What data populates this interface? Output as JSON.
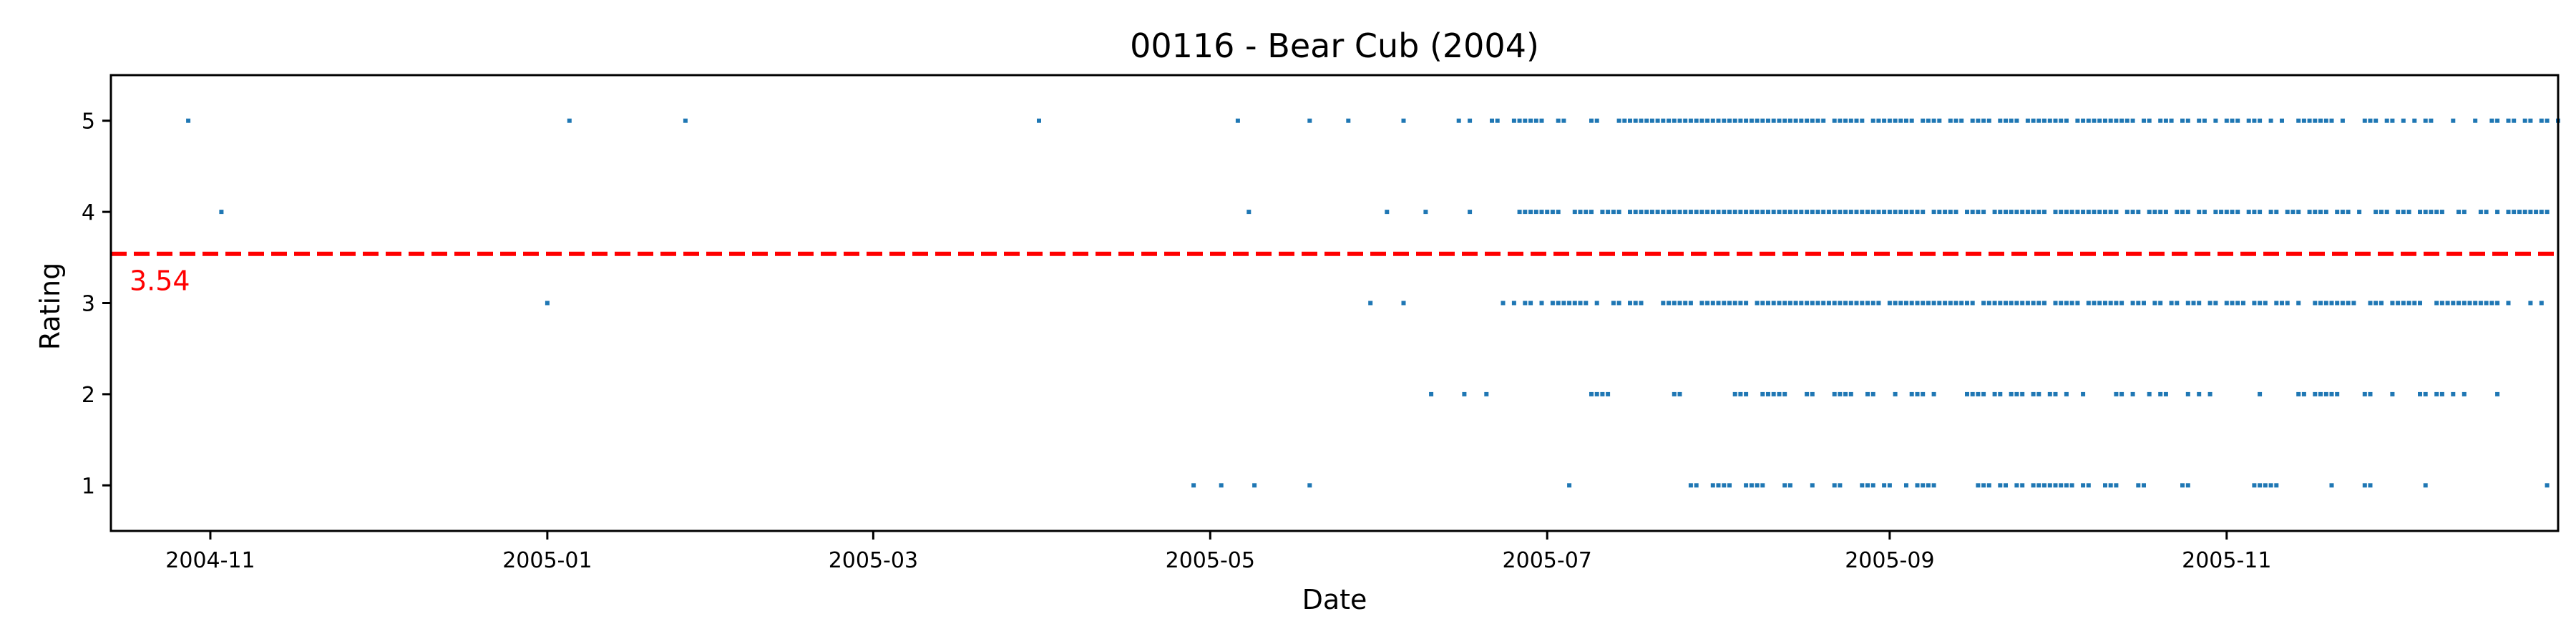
{
  "chart_data": {
    "type": "scatter",
    "title": "00116 - Bear Cub (2004)",
    "xlabel": "Date",
    "ylabel": "Rating",
    "xlim": [
      "2004-10-14",
      "2005-12-31"
    ],
    "ylim": [
      0.5,
      5.5
    ],
    "x_ticks": [
      "2004-11",
      "2005-01",
      "2005-03",
      "2005-05",
      "2005-07",
      "2005-09",
      "2005-11"
    ],
    "y_ticks": [
      1,
      2,
      3,
      4,
      5
    ],
    "grid": false,
    "colors": {
      "points": "#1f77b4",
      "mean_line": "#ff0000"
    },
    "mean": {
      "value": 3.54,
      "label": "3.54"
    },
    "series": [
      {
        "points_by_rating": [
          {
            "rating": 5,
            "dates": [
              "2004-10-28",
              "2005-01-05",
              "2005-01-26",
              "2005-03-31",
              "2005-05-06",
              "2005-05-19",
              "2005-05-26",
              "2005-06-05",
              "2005-06-15",
              "2005-06-17",
              "2005-06-21",
              "2005-06-22",
              "2005-06-25",
              "2005-06-26",
              "2005-06-27",
              "2005-06-28",
              "2005-06-29",
              "2005-06-30",
              "2005-07-03",
              "2005-07-04",
              "2005-07-09",
              "2005-07-10",
              "2005-07-14",
              "2005-07-15",
              "2005-07-16",
              "2005-07-17",
              "2005-07-18",
              "2005-07-19",
              "2005-07-20",
              "2005-07-21",
              "2005-07-22",
              "2005-07-23",
              "2005-07-24",
              "2005-07-25",
              "2005-07-26",
              "2005-07-27",
              "2005-07-28",
              "2005-07-29",
              "2005-07-30",
              "2005-07-31",
              "2005-08-01",
              "2005-08-02",
              "2005-08-03",
              "2005-08-04",
              "2005-08-05",
              "2005-08-06",
              "2005-08-07",
              "2005-08-08",
              "2005-08-09",
              "2005-08-10",
              "2005-08-11",
              "2005-08-12",
              "2005-08-13",
              "2005-08-14",
              "2005-08-15",
              "2005-08-16",
              "2005-08-17",
              "2005-08-18",
              "2005-08-19",
              "2005-08-20",
              "2005-08-22",
              "2005-08-23",
              "2005-08-24",
              "2005-08-25",
              "2005-08-26",
              "2005-08-27",
              "2005-08-29",
              "2005-08-30",
              "2005-08-31",
              "2005-09-01",
              "2005-09-02",
              "2005-09-03",
              "2005-09-04",
              "2005-09-05",
              "2005-09-07",
              "2005-09-08",
              "2005-09-09",
              "2005-09-10",
              "2005-09-12",
              "2005-09-13",
              "2005-09-14",
              "2005-09-16",
              "2005-09-17",
              "2005-09-18",
              "2005-09-19",
              "2005-09-21",
              "2005-09-22",
              "2005-09-23",
              "2005-09-24",
              "2005-09-26",
              "2005-09-27",
              "2005-09-28",
              "2005-09-29",
              "2005-09-30",
              "2005-10-01",
              "2005-10-02",
              "2005-10-03",
              "2005-10-05",
              "2005-10-06",
              "2005-10-07",
              "2005-10-08",
              "2005-10-09",
              "2005-10-10",
              "2005-10-11",
              "2005-10-12",
              "2005-10-13",
              "2005-10-14",
              "2005-10-15",
              "2005-10-17",
              "2005-10-18",
              "2005-10-20",
              "2005-10-21",
              "2005-10-22",
              "2005-10-24",
              "2005-10-25",
              "2005-10-27",
              "2005-10-28",
              "2005-10-30",
              "2005-11-01",
              "2005-11-02",
              "2005-11-03",
              "2005-11-05",
              "2005-11-06",
              "2005-11-07",
              "2005-11-09",
              "2005-11-11",
              "2005-11-14",
              "2005-11-15",
              "2005-11-16",
              "2005-11-17",
              "2005-11-18",
              "2005-11-19",
              "2005-11-20",
              "2005-11-22",
              "2005-11-26",
              "2005-11-27",
              "2005-11-28",
              "2005-11-30",
              "2005-12-01",
              "2005-12-03",
              "2005-12-05",
              "2005-12-07",
              "2005-12-08",
              "2005-12-12",
              "2005-12-16",
              "2005-12-19",
              "2005-12-20",
              "2005-12-22",
              "2005-12-23",
              "2005-12-25",
              "2005-12-26",
              "2005-12-28",
              "2005-12-29",
              "2005-12-31"
            ]
          },
          {
            "rating": 4,
            "dates": [
              "2004-11-03",
              "2005-05-08",
              "2005-06-02",
              "2005-06-09",
              "2005-06-17",
              "2005-06-26",
              "2005-06-27",
              "2005-06-28",
              "2005-06-29",
              "2005-06-30",
              "2005-07-01",
              "2005-07-02",
              "2005-07-03",
              "2005-07-06",
              "2005-07-07",
              "2005-07-08",
              "2005-07-09",
              "2005-07-11",
              "2005-07-12",
              "2005-07-13",
              "2005-07-14",
              "2005-07-16",
              "2005-07-17",
              "2005-07-18",
              "2005-07-19",
              "2005-07-20",
              "2005-07-21",
              "2005-07-22",
              "2005-07-23",
              "2005-07-24",
              "2005-07-25",
              "2005-07-26",
              "2005-07-27",
              "2005-07-28",
              "2005-07-29",
              "2005-07-30",
              "2005-07-31",
              "2005-08-01",
              "2005-08-02",
              "2005-08-03",
              "2005-08-04",
              "2005-08-05",
              "2005-08-06",
              "2005-08-07",
              "2005-08-08",
              "2005-08-09",
              "2005-08-10",
              "2005-08-11",
              "2005-08-12",
              "2005-08-13",
              "2005-08-14",
              "2005-08-15",
              "2005-08-16",
              "2005-08-17",
              "2005-08-18",
              "2005-08-19",
              "2005-08-20",
              "2005-08-21",
              "2005-08-22",
              "2005-08-23",
              "2005-08-24",
              "2005-08-25",
              "2005-08-26",
              "2005-08-27",
              "2005-08-28",
              "2005-08-29",
              "2005-08-30",
              "2005-08-31",
              "2005-09-01",
              "2005-09-02",
              "2005-09-03",
              "2005-09-04",
              "2005-09-05",
              "2005-09-06",
              "2005-09-07",
              "2005-09-09",
              "2005-09-10",
              "2005-09-11",
              "2005-09-12",
              "2005-09-13",
              "2005-09-15",
              "2005-09-16",
              "2005-09-17",
              "2005-09-18",
              "2005-09-20",
              "2005-09-21",
              "2005-09-22",
              "2005-09-23",
              "2005-09-24",
              "2005-09-25",
              "2005-09-26",
              "2005-09-27",
              "2005-09-28",
              "2005-09-29",
              "2005-10-01",
              "2005-10-02",
              "2005-10-03",
              "2005-10-04",
              "2005-10-05",
              "2005-10-06",
              "2005-10-07",
              "2005-10-08",
              "2005-10-09",
              "2005-10-10",
              "2005-10-11",
              "2005-10-12",
              "2005-10-14",
              "2005-10-15",
              "2005-10-16",
              "2005-10-18",
              "2005-10-19",
              "2005-10-20",
              "2005-10-21",
              "2005-10-23",
              "2005-10-24",
              "2005-10-25",
              "2005-10-27",
              "2005-10-28",
              "2005-10-30",
              "2005-10-31",
              "2005-11-01",
              "2005-11-02",
              "2005-11-03",
              "2005-11-05",
              "2005-11-06",
              "2005-11-07",
              "2005-11-09",
              "2005-11-10",
              "2005-11-12",
              "2005-11-13",
              "2005-11-14",
              "2005-11-16",
              "2005-11-17",
              "2005-11-18",
              "2005-11-19",
              "2005-11-21",
              "2005-11-22",
              "2005-11-23",
              "2005-11-25",
              "2005-11-28",
              "2005-11-29",
              "2005-11-30",
              "2005-12-02",
              "2005-12-03",
              "2005-12-04",
              "2005-12-06",
              "2005-12-07",
              "2005-12-08",
              "2005-12-09",
              "2005-12-10",
              "2005-12-13",
              "2005-12-14",
              "2005-12-17",
              "2005-12-18",
              "2005-12-20",
              "2005-12-22",
              "2005-12-23",
              "2005-12-24",
              "2005-12-25",
              "2005-12-26",
              "2005-12-27",
              "2005-12-28",
              "2005-12-29"
            ]
          },
          {
            "rating": 3,
            "dates": [
              "2005-01-01",
              "2005-05-30",
              "2005-06-05",
              "2005-06-23",
              "2005-06-25",
              "2005-06-27",
              "2005-06-28",
              "2005-06-30",
              "2005-07-02",
              "2005-07-03",
              "2005-07-04",
              "2005-07-05",
              "2005-07-06",
              "2005-07-07",
              "2005-07-08",
              "2005-07-10",
              "2005-07-13",
              "2005-07-14",
              "2005-07-16",
              "2005-07-17",
              "2005-07-18",
              "2005-07-22",
              "2005-07-23",
              "2005-07-24",
              "2005-07-25",
              "2005-07-26",
              "2005-07-27",
              "2005-07-29",
              "2005-07-30",
              "2005-07-31",
              "2005-08-01",
              "2005-08-02",
              "2005-08-03",
              "2005-08-04",
              "2005-08-05",
              "2005-08-06",
              "2005-08-08",
              "2005-08-09",
              "2005-08-10",
              "2005-08-11",
              "2005-08-12",
              "2005-08-13",
              "2005-08-14",
              "2005-08-15",
              "2005-08-16",
              "2005-08-17",
              "2005-08-18",
              "2005-08-19",
              "2005-08-20",
              "2005-08-21",
              "2005-08-22",
              "2005-08-23",
              "2005-08-24",
              "2005-08-25",
              "2005-08-26",
              "2005-08-27",
              "2005-08-28",
              "2005-08-29",
              "2005-08-30",
              "2005-09-01",
              "2005-09-02",
              "2005-09-03",
              "2005-09-04",
              "2005-09-05",
              "2005-09-06",
              "2005-09-07",
              "2005-09-08",
              "2005-09-09",
              "2005-09-10",
              "2005-09-11",
              "2005-09-12",
              "2005-09-13",
              "2005-09-14",
              "2005-09-15",
              "2005-09-16",
              "2005-09-18",
              "2005-09-19",
              "2005-09-20",
              "2005-09-21",
              "2005-09-22",
              "2005-09-23",
              "2005-09-24",
              "2005-09-25",
              "2005-09-26",
              "2005-09-27",
              "2005-09-28",
              "2005-09-29",
              "2005-10-01",
              "2005-10-02",
              "2005-10-03",
              "2005-10-04",
              "2005-10-05",
              "2005-10-07",
              "2005-10-08",
              "2005-10-09",
              "2005-10-10",
              "2005-10-11",
              "2005-10-12",
              "2005-10-13",
              "2005-10-15",
              "2005-10-16",
              "2005-10-17",
              "2005-10-19",
              "2005-10-20",
              "2005-10-22",
              "2005-10-23",
              "2005-10-25",
              "2005-10-26",
              "2005-10-27",
              "2005-10-29",
              "2005-10-30",
              "2005-11-01",
              "2005-11-02",
              "2005-11-03",
              "2005-11-04",
              "2005-11-06",
              "2005-11-07",
              "2005-11-08",
              "2005-11-10",
              "2005-11-11",
              "2005-11-12",
              "2005-11-14",
              "2005-11-17",
              "2005-11-18",
              "2005-11-19",
              "2005-11-20",
              "2005-11-21",
              "2005-11-22",
              "2005-11-23",
              "2005-11-24",
              "2005-11-27",
              "2005-11-28",
              "2005-11-29",
              "2005-12-01",
              "2005-12-02",
              "2005-12-03",
              "2005-12-04",
              "2005-12-05",
              "2005-12-06",
              "2005-12-09",
              "2005-12-10",
              "2005-12-11",
              "2005-12-12",
              "2005-12-13",
              "2005-12-14",
              "2005-12-15",
              "2005-12-16",
              "2005-12-17",
              "2005-12-18",
              "2005-12-19",
              "2005-12-20",
              "2005-12-22",
              "2005-12-26",
              "2005-12-28"
            ]
          },
          {
            "rating": 2,
            "dates": [
              "2005-06-10",
              "2005-06-16",
              "2005-06-20",
              "2005-07-09",
              "2005-07-10",
              "2005-07-11",
              "2005-07-12",
              "2005-07-24",
              "2005-07-25",
              "2005-08-04",
              "2005-08-05",
              "2005-08-06",
              "2005-08-09",
              "2005-08-10",
              "2005-08-11",
              "2005-08-12",
              "2005-08-13",
              "2005-08-17",
              "2005-08-18",
              "2005-08-22",
              "2005-08-23",
              "2005-08-24",
              "2005-08-25",
              "2005-08-28",
              "2005-08-29",
              "2005-09-02",
              "2005-09-05",
              "2005-09-06",
              "2005-09-07",
              "2005-09-09",
              "2005-09-15",
              "2005-09-16",
              "2005-09-17",
              "2005-09-18",
              "2005-09-20",
              "2005-09-21",
              "2005-09-23",
              "2005-09-24",
              "2005-09-25",
              "2005-09-27",
              "2005-09-28",
              "2005-09-30",
              "2005-10-01",
              "2005-10-03",
              "2005-10-06",
              "2005-10-12",
              "2005-10-13",
              "2005-10-15",
              "2005-10-18",
              "2005-10-20",
              "2005-10-21",
              "2005-10-25",
              "2005-10-27",
              "2005-10-29",
              "2005-11-07",
              "2005-11-14",
              "2005-11-15",
              "2005-11-17",
              "2005-11-18",
              "2005-11-19",
              "2005-11-20",
              "2005-11-21",
              "2005-11-26",
              "2005-11-27",
              "2005-12-01",
              "2005-12-06",
              "2005-12-07",
              "2005-12-09",
              "2005-12-10",
              "2005-12-12",
              "2005-12-14",
              "2005-12-20"
            ]
          },
          {
            "rating": 1,
            "dates": [
              "2005-04-28",
              "2005-05-03",
              "2005-05-09",
              "2005-05-19",
              "2005-07-05",
              "2005-07-27",
              "2005-07-28",
              "2005-07-31",
              "2005-08-01",
              "2005-08-02",
              "2005-08-03",
              "2005-08-06",
              "2005-08-07",
              "2005-08-08",
              "2005-08-09",
              "2005-08-13",
              "2005-08-14",
              "2005-08-18",
              "2005-08-22",
              "2005-08-23",
              "2005-08-27",
              "2005-08-28",
              "2005-08-29",
              "2005-08-31",
              "2005-09-01",
              "2005-09-04",
              "2005-09-06",
              "2005-09-07",
              "2005-09-08",
              "2005-09-09",
              "2005-09-17",
              "2005-09-18",
              "2005-09-19",
              "2005-09-21",
              "2005-09-22",
              "2005-09-24",
              "2005-09-25",
              "2005-09-27",
              "2005-09-28",
              "2005-09-29",
              "2005-09-30",
              "2005-10-01",
              "2005-10-02",
              "2005-10-03",
              "2005-10-04",
              "2005-10-06",
              "2005-10-07",
              "2005-10-10",
              "2005-10-11",
              "2005-10-12",
              "2005-10-16",
              "2005-10-17",
              "2005-10-24",
              "2005-10-25",
              "2005-11-06",
              "2005-11-07",
              "2005-11-08",
              "2005-11-09",
              "2005-11-10",
              "2005-11-20",
              "2005-11-26",
              "2005-11-27",
              "2005-12-07",
              "2005-12-29"
            ]
          }
        ]
      }
    ]
  }
}
